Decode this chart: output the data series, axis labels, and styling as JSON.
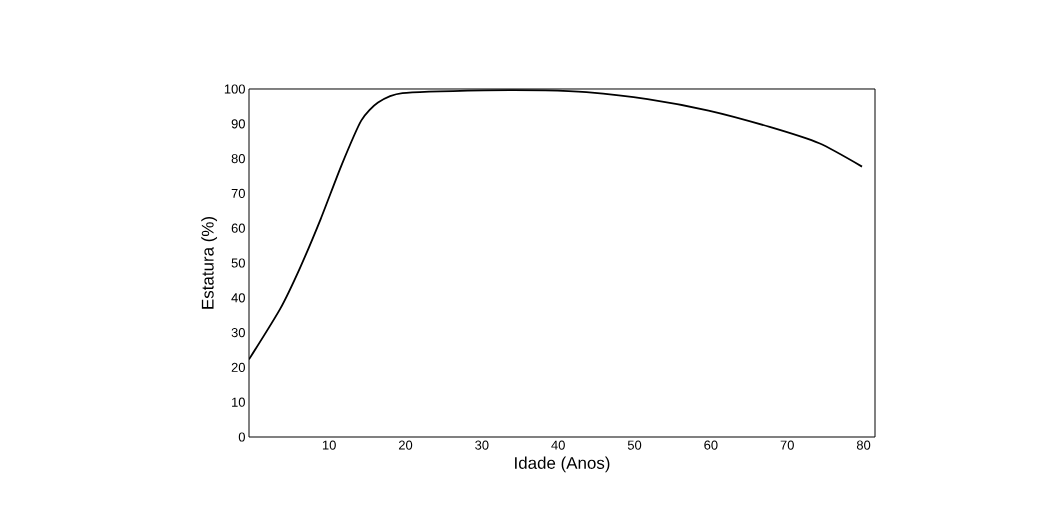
{
  "chart_data": {
    "type": "line",
    "xlabel": "Idade (Anos)",
    "ylabel": "Estatura (%)",
    "x": [
      -0.5,
      3.6,
      6.2,
      8.9,
      11.6,
      14.2,
      16.4,
      19.6,
      30.3,
      38.3,
      43.7,
      51.7,
      59.7,
      67.7,
      74.2,
      79.8
    ],
    "values": [
      22.3,
      36.9,
      48.7,
      62.7,
      78,
      90.9,
      96.1,
      98.8,
      99.6,
      99.6,
      99.1,
      97.1,
      93.8,
      89.1,
      84.4,
      77.7
    ],
    "color": "#000000",
    "line_style": "solid",
    "xlim": [
      -0.5,
      81.5
    ],
    "ylim": [
      0,
      100
    ],
    "xticks": [
      10,
      20,
      30,
      40,
      50,
      60,
      70,
      80
    ],
    "yticks": [
      0,
      10,
      20,
      30,
      40,
      50,
      60,
      70,
      80,
      90,
      100
    ]
  }
}
